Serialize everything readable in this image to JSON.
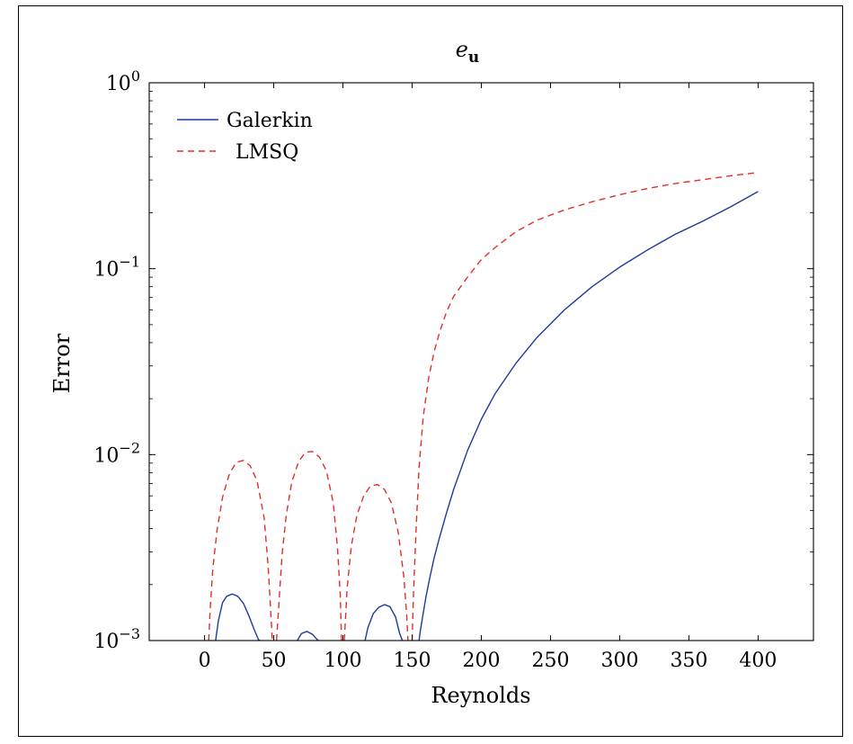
{
  "chart_data": {
    "type": "line",
    "title": "e",
    "title_subscript": "u",
    "xlabel": "Reynolds",
    "ylabel": "Error",
    "y_scale": "log",
    "ylim": [
      0.001,
      1
    ],
    "xlim": [
      -40,
      440
    ],
    "x_ticks": [
      0,
      50,
      100,
      150,
      200,
      250,
      300,
      350,
      400
    ],
    "x_tick_labels": [
      "0",
      "50",
      "100",
      "150",
      "200",
      "250",
      "300",
      "350",
      "400"
    ],
    "y_ticks": [
      0.001,
      0.01,
      0.1,
      1
    ],
    "y_tick_labels": [
      {
        "base": "10",
        "exp": "−3"
      },
      {
        "base": "10",
        "exp": "−2"
      },
      {
        "base": "10",
        "exp": "−1"
      },
      {
        "base": "10",
        "exp": "0"
      }
    ],
    "legend_position": "top-left",
    "grid": false,
    "series": [
      {
        "name": "Galerkin",
        "color": "#1f3a9a",
        "style": "solid",
        "x": [
          8,
          10,
          13,
          16,
          20,
          24,
          28,
          32,
          36,
          39,
          40,
          null,
          67,
          70,
          74,
          78,
          82,
          83,
          null,
          116,
          118,
          122,
          126,
          130,
          134,
          138,
          141,
          143,
          null,
          155,
          156,
          158,
          160,
          163,
          166,
          170,
          175,
          180,
          190,
          200,
          210,
          225,
          240,
          260,
          280,
          300,
          320,
          340,
          360,
          380,
          400
        ],
        "y": [
          0.001,
          0.00128,
          0.0016,
          0.00173,
          0.00178,
          0.00173,
          0.00159,
          0.00136,
          0.00114,
          0.00101,
          0.001,
          null,
          0.001,
          0.00109,
          0.00112,
          0.00108,
          0.001,
          0.001,
          null,
          0.001,
          0.00117,
          0.0014,
          0.00151,
          0.00156,
          0.00152,
          0.00134,
          0.00109,
          0.001,
          null,
          0.001,
          0.00114,
          0.0014,
          0.00172,
          0.00222,
          0.0028,
          0.00363,
          0.0049,
          0.0065,
          0.0105,
          0.0155,
          0.0213,
          0.031,
          0.0425,
          0.06,
          0.08,
          0.102,
          0.126,
          0.153,
          0.18,
          0.215,
          0.26
        ]
      },
      {
        "name": "LMSQ",
        "color": "#e0302a",
        "style": "dashed",
        "x": [
          3,
          4,
          6,
          9,
          13,
          18,
          23,
          28,
          33,
          38,
          43,
          46,
          48,
          49,
          null,
          52,
          54,
          56,
          59,
          63,
          68,
          73,
          78,
          83,
          88,
          93,
          96,
          98,
          99,
          null,
          101,
          103,
          106,
          110,
          115,
          120,
          125,
          130,
          135,
          140,
          144,
          146,
          147,
          null,
          150,
          151,
          153,
          155,
          158,
          162,
          166,
          170,
          175,
          180,
          190,
          200,
          210,
          225,
          240,
          260,
          280,
          300,
          320,
          340,
          360,
          380,
          400
        ],
        "y": [
          0.001,
          0.00145,
          0.00245,
          0.0039,
          0.0059,
          0.0079,
          0.0091,
          0.0093,
          0.0087,
          0.0072,
          0.0046,
          0.0025,
          0.00135,
          0.001,
          null,
          0.001,
          0.0017,
          0.0029,
          0.0047,
          0.0071,
          0.0092,
          0.0103,
          0.0104,
          0.0097,
          0.0082,
          0.0055,
          0.0032,
          0.0018,
          0.001,
          null,
          0.001,
          0.0019,
          0.0032,
          0.0047,
          0.006,
          0.0068,
          0.0069,
          0.0065,
          0.0055,
          0.0038,
          0.0022,
          0.0014,
          0.001,
          null,
          0.001,
          0.0018,
          0.0042,
          0.0085,
          0.016,
          0.026,
          0.036,
          0.046,
          0.059,
          0.071,
          0.09,
          0.112,
          0.13,
          0.158,
          0.182,
          0.207,
          0.229,
          0.25,
          0.27,
          0.287,
          0.301,
          0.316,
          0.329
        ]
      }
    ]
  }
}
